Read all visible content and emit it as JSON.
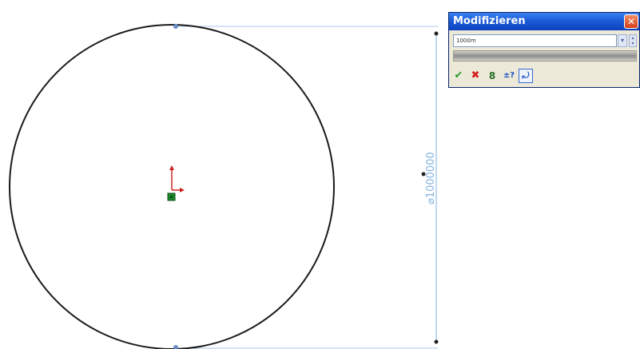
{
  "drawing": {
    "dimension_label": "⌀1000000"
  },
  "modify_dialog": {
    "title": "Modifizieren",
    "close_glyph": "✕",
    "value": "1000m",
    "dropdown_glyph": "▾",
    "spin_up_glyph": "▴",
    "spin_down_glyph": "▾",
    "toolbar": {
      "ok_glyph": "✔",
      "cancel_glyph": "✖",
      "rebuild_glyph": "8",
      "mark_glyph": "±?",
      "reverse_glyph": "⤾"
    }
  },
  "colors": {
    "circle": "#1a1a1a",
    "dimension": "#7fb2e0",
    "origin_red": "#cc2222",
    "origin_green": "#1a8a2a",
    "dialog_title_bar": "#1c5bd6"
  },
  "icons": [
    "close-icon",
    "ok-check-icon",
    "cancel-x-icon",
    "rebuild-icon",
    "mark-dimension-icon",
    "reverse-direction-icon"
  ]
}
